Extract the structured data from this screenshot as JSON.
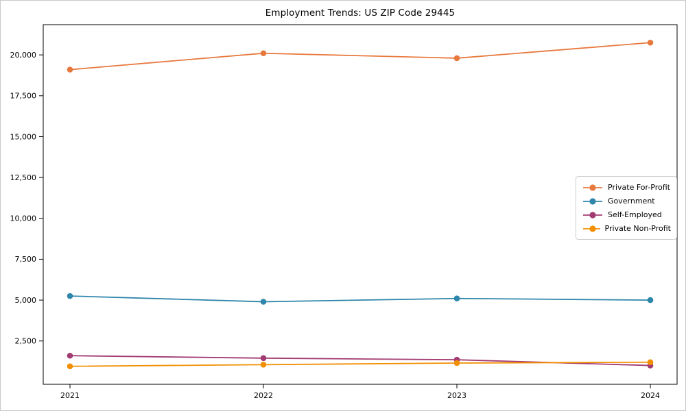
{
  "chart_data": {
    "type": "line",
    "title": "Employment Trends: US ZIP Code 29445",
    "categories": [
      "2021",
      "2022",
      "2023",
      "2024"
    ],
    "series": [
      {
        "name": "Private For-Profit",
        "color": "#e8793d",
        "values": [
          19100,
          20100,
          19800,
          20750
        ]
      },
      {
        "name": "Government",
        "color": "#2e86ab",
        "values": [
          5250,
          4900,
          5100,
          5000
        ]
      },
      {
        "name": "Self-Employed",
        "color": "#a23b72",
        "values": [
          1600,
          1450,
          1350,
          1000
        ]
      },
      {
        "name": "Private Non-Profit",
        "color": "#f18f01",
        "values": [
          950,
          1050,
          1150,
          1200
        ]
      }
    ],
    "xlabel": "",
    "ylabel": "",
    "ylim": [
      -150,
      21850
    ],
    "yticks": [
      2500,
      5000,
      7500,
      10000,
      12500,
      15000,
      17500,
      20000
    ],
    "ytick_labels": [
      "2,500",
      "5,000",
      "7,500",
      "10,000",
      "12,500",
      "15,000",
      "17,500",
      "20,000"
    ],
    "grid": false,
    "legend_position": "center-right",
    "marker": "circle",
    "axis_color": "#000000",
    "background_color": "#ffffff"
  }
}
